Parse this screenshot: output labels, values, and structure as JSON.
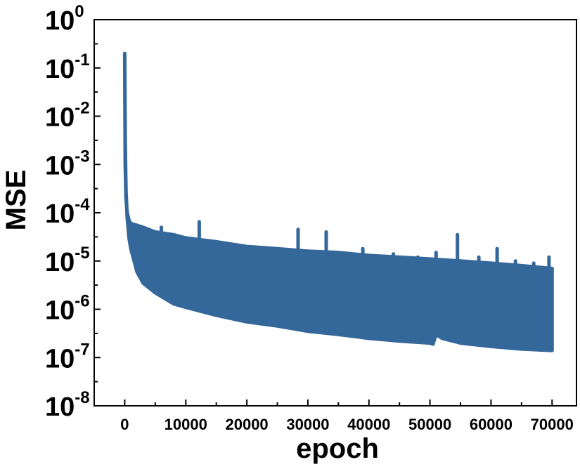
{
  "chart_data": {
    "type": "line",
    "title": "",
    "xlabel": "epoch",
    "ylabel": "MSE",
    "xlim": [
      -5000,
      74000
    ],
    "ylim": [
      1e-08,
      1
    ],
    "yscale": "log",
    "grid": false,
    "legend": "none",
    "x_ticks": [
      {
        "value": 0,
        "label": "0"
      },
      {
        "value": 10000,
        "label": "10000"
      },
      {
        "value": 20000,
        "label": "20000"
      },
      {
        "value": 30000,
        "label": "30000"
      },
      {
        "value": 40000,
        "label": "40000"
      },
      {
        "value": 50000,
        "label": "50000"
      },
      {
        "value": 60000,
        "label": "60000"
      },
      {
        "value": 70000,
        "label": "70000"
      }
    ],
    "y_ticks": [
      {
        "value": 1,
        "base": "10",
        "exp": "0"
      },
      {
        "value": 0.1,
        "base": "10",
        "exp": "-1"
      },
      {
        "value": 0.01,
        "base": "10",
        "exp": "-2"
      },
      {
        "value": 0.001,
        "base": "10",
        "exp": "-3"
      },
      {
        "value": 0.0001,
        "base": "10",
        "exp": "-4"
      },
      {
        "value": 1e-05,
        "base": "10",
        "exp": "-5"
      },
      {
        "value": 1e-06,
        "base": "10",
        "exp": "-6"
      },
      {
        "value": 1e-07,
        "base": "10",
        "exp": "-7"
      },
      {
        "value": 1e-08,
        "base": "10",
        "exp": "-8"
      }
    ],
    "series": [
      {
        "color": "#34679a",
        "lower_envelope": [
          [
            0,
            0.2
          ],
          [
            80,
            0.003
          ],
          [
            200,
            0.0003
          ],
          [
            400,
            8e-05
          ],
          [
            700,
            3e-05
          ],
          [
            1000,
            1.8e-05
          ],
          [
            2000,
            6e-06
          ],
          [
            3000,
            3.5e-06
          ],
          [
            5000,
            2.2e-06
          ],
          [
            8000,
            1.3e-06
          ],
          [
            10000,
            1.1e-06
          ],
          [
            15000,
            7.5e-07
          ],
          [
            20000,
            5.5e-07
          ],
          [
            25000,
            4.5e-07
          ],
          [
            30000,
            3.5e-07
          ],
          [
            35000,
            3e-07
          ],
          [
            40000,
            2.5e-07
          ],
          [
            45000,
            2.2e-07
          ],
          [
            50000,
            2e-07
          ],
          [
            50500,
            1.9e-07
          ],
          [
            51000,
            3e-07
          ],
          [
            52000,
            2.5e-07
          ],
          [
            55000,
            2e-07
          ],
          [
            60000,
            1.7e-07
          ],
          [
            65000,
            1.5e-07
          ],
          [
            70000,
            1.4e-07
          ]
        ],
        "upper_envelope": [
          [
            0,
            0.2
          ],
          [
            80,
            0.001
          ],
          [
            200,
            0.0002
          ],
          [
            400,
            0.0001
          ],
          [
            700,
            7e-05
          ],
          [
            1000,
            6e-05
          ],
          [
            2000,
            5.5e-05
          ],
          [
            3000,
            5e-05
          ],
          [
            5000,
            4e-05
          ],
          [
            8000,
            3.5e-05
          ],
          [
            10000,
            3e-05
          ],
          [
            15000,
            2.5e-05
          ],
          [
            20000,
            2e-05
          ],
          [
            25000,
            1.8e-05
          ],
          [
            30000,
            1.6e-05
          ],
          [
            35000,
            1.5e-05
          ],
          [
            40000,
            1.3e-05
          ],
          [
            45000,
            1.2e-05
          ],
          [
            50000,
            1.1e-05
          ],
          [
            55000,
            1e-05
          ],
          [
            60000,
            9e-06
          ],
          [
            65000,
            8e-06
          ],
          [
            70000,
            7e-06
          ]
        ],
        "spikes": [
          [
            3000,
            5e-05
          ],
          [
            6000,
            5e-05
          ],
          [
            9000,
            3e-05
          ],
          [
            12200,
            6.5e-05
          ],
          [
            16000,
            2e-05
          ],
          [
            19500,
            2e-05
          ],
          [
            23000,
            1.5e-05
          ],
          [
            28400,
            4.5e-05
          ],
          [
            30500,
            1.5e-05
          ],
          [
            33000,
            4e-05
          ],
          [
            36000,
            1e-05
          ],
          [
            39000,
            1.8e-05
          ],
          [
            42000,
            1e-05
          ],
          [
            44000,
            1.4e-05
          ],
          [
            48000,
            1.2e-05
          ],
          [
            51000,
            1.5e-05
          ],
          [
            54500,
            3.5e-05
          ],
          [
            58000,
            1.2e-05
          ],
          [
            61000,
            1.8e-05
          ],
          [
            64000,
            1e-05
          ],
          [
            67000,
            9e-06
          ],
          [
            69500,
            1.2e-05
          ]
        ]
      }
    ]
  }
}
